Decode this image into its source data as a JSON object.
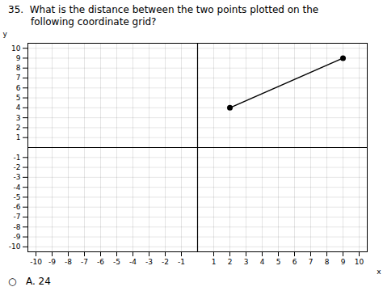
{
  "chart_data": {
    "type": "line",
    "title": "35.  What is the distance between the two points plotted on the",
    "subtitle": "following coordinate grid?",
    "x": [
      2,
      9
    ],
    "values": [
      4,
      9
    ],
    "marker": "circle",
    "x_label": "x",
    "y_label": "y",
    "xlim": [
      -10.5,
      10.5
    ],
    "ylim": [
      -10.5,
      10.5
    ],
    "xticks": [
      -10,
      -9,
      -8,
      -7,
      -6,
      -5,
      -4,
      -3,
      -2,
      -1,
      1,
      2,
      3,
      4,
      5,
      6,
      7,
      8,
      9,
      10
    ],
    "yticks": [
      -10,
      -9,
      -8,
      -7,
      -6,
      -5,
      -4,
      -3,
      -2,
      -1,
      1,
      2,
      3,
      4,
      5,
      6,
      7,
      8,
      9,
      10
    ],
    "grid": true,
    "annotations": [
      "○   A. 24"
    ]
  }
}
